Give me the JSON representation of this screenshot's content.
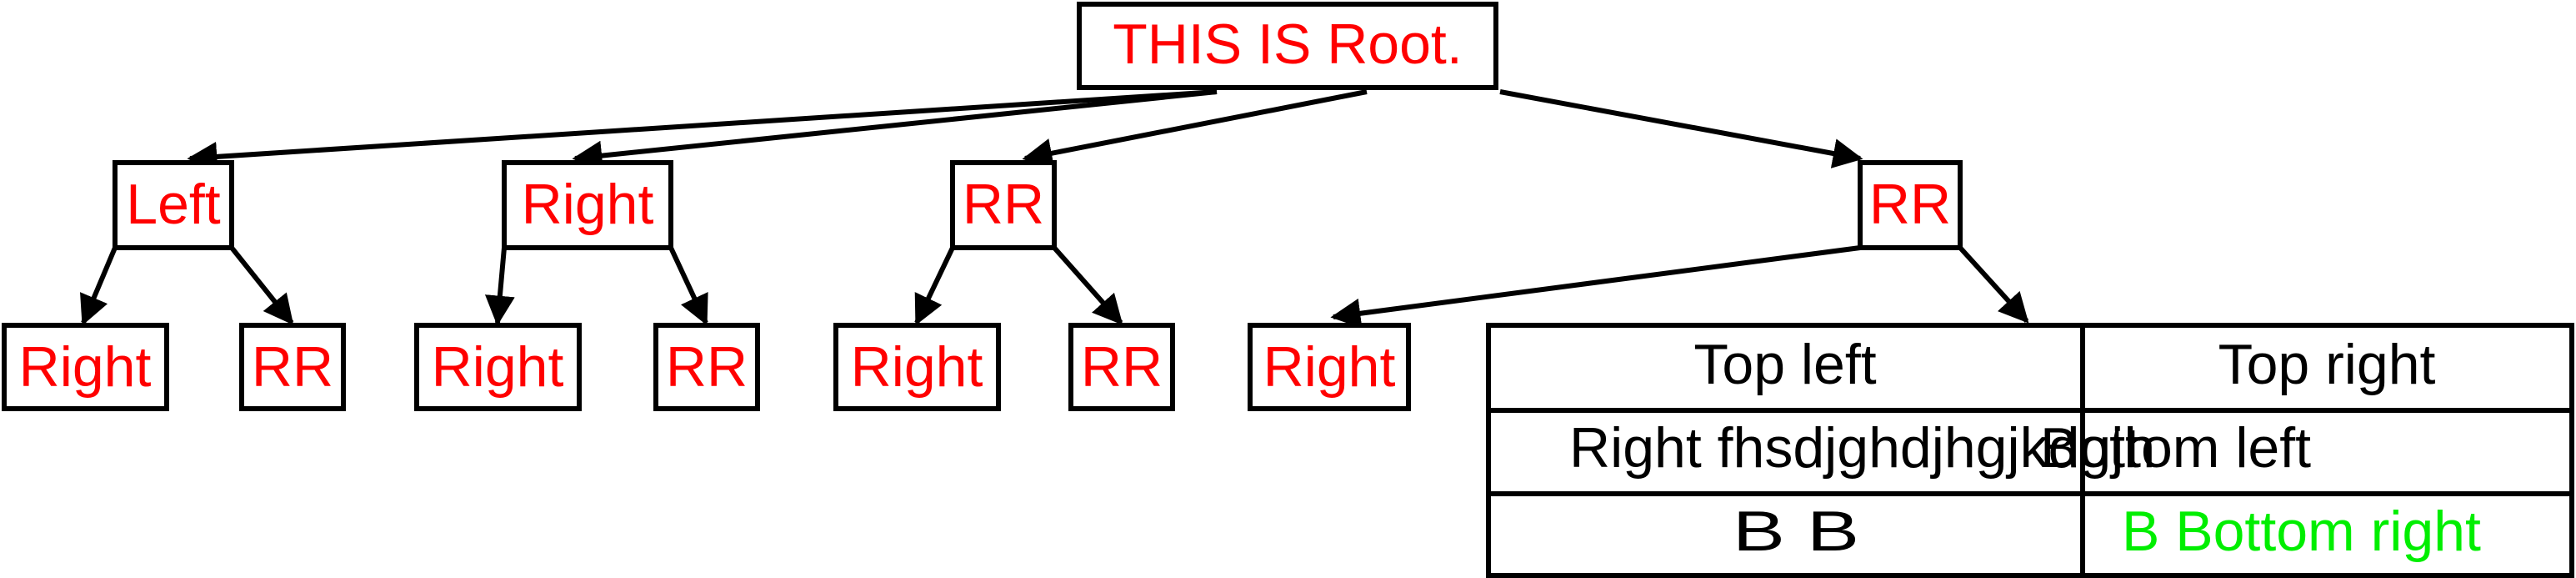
{
  "colors": {
    "node_text": "#ff0000",
    "cell_text": "#000000",
    "cell_text_highlight": "#00ee00",
    "stroke": "#000000"
  },
  "tree": {
    "root": "THIS IS Root.",
    "level1": [
      "Left",
      "Right",
      "RR",
      "RR"
    ],
    "level2": [
      "Right",
      "RR",
      "Right",
      "RR",
      "Right",
      "RR",
      "Right"
    ]
  },
  "table": {
    "top_left": "Top left",
    "top_right": "Top right",
    "middle_left": "Right fhsdjghdjhgjkdgjh",
    "middle_right": "Bottom left",
    "bottom_left": "B B",
    "bottom_right": "B Bottom right"
  }
}
